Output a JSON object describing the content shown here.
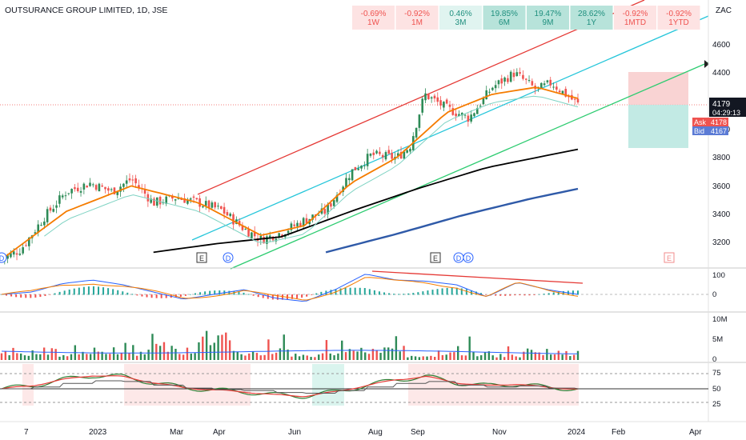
{
  "header": {
    "title": "OUTSURANCE GROUP LIMITED, 1D, JSE",
    "currency": "ZAC"
  },
  "performance": [
    {
      "value": "-0.69%",
      "label": "1W",
      "kind": "neg"
    },
    {
      "value": "-0.92%",
      "label": "1M",
      "kind": "neg"
    },
    {
      "value": "0.46%",
      "label": "3M",
      "kind": "pos"
    },
    {
      "value": "19.85%",
      "label": "6M",
      "kind": "posx"
    },
    {
      "value": "19.47%",
      "label": "9M",
      "kind": "posx"
    },
    {
      "value": "28.62%",
      "label": "1Y",
      "kind": "posx"
    },
    {
      "value": "-0.92%",
      "label": "1MTD",
      "kind": "neg"
    },
    {
      "value": "-0.92%",
      "label": "1YTD",
      "kind": "neg"
    }
  ],
  "price_scale": {
    "ticks": [
      "4600",
      "4400",
      "4200",
      "4000",
      "3800",
      "3600",
      "3400",
      "3200"
    ],
    "last_price": "4179",
    "countdown": "04:29:13",
    "ask_label": "Ask",
    "ask_value": "4178",
    "bid_label": "Bid",
    "bid_value": "4167"
  },
  "macd_scale": [
    "100",
    "0"
  ],
  "volume_scale": [
    "10M",
    "5M",
    "0"
  ],
  "rsi_scale": [
    "75",
    "50",
    "25"
  ],
  "time_axis": [
    "7",
    "2023",
    "Mar",
    "Apr",
    "Jun",
    "Aug",
    "Sep",
    "Nov",
    "2024",
    "Feb",
    "Apr"
  ],
  "event_markers": [
    "D",
    "E",
    "D",
    "E",
    "D",
    "D",
    "E"
  ],
  "colors": {
    "up": "#26a69a",
    "candle_up": "#2e8b57",
    "down": "#ef5350",
    "ema_fast": "#f57c00",
    "ma200": "#000000",
    "ma_long": "#2f5aa8",
    "channel_red": "#e53935",
    "channel_mid": "#26c6da",
    "channel_green": "#2ecc71"
  },
  "chart_data": [
    {
      "type": "candlestick",
      "title": "OUTSURANCE GROUP LIMITED, 1D, JSE",
      "ylabel": "ZAC",
      "ylim": [
        3050,
        4800
      ],
      "x_ticks": [
        "7",
        "2023",
        "Mar",
        "Apr",
        "Jun",
        "Aug",
        "Sep",
        "Nov",
        "2024",
        "Feb",
        "Apr"
      ],
      "series": [
        {
          "name": "close",
          "dates": [
            "2022-12-07",
            "2022-12-20",
            "2023-01-05",
            "2023-01-20",
            "2023-02-05",
            "2023-02-20",
            "2023-03-05",
            "2023-03-20",
            "2023-04-05",
            "2023-04-20",
            "2023-05-05",
            "2023-05-20",
            "2023-06-01",
            "2023-06-15",
            "2023-07-01",
            "2023-07-15",
            "2023-08-01",
            "2023-08-15",
            "2023-09-01",
            "2023-09-10",
            "2023-09-20",
            "2023-10-05",
            "2023-10-20",
            "2023-11-05",
            "2023-11-20",
            "2023-12-05",
            "2023-12-15",
            "2024-01-02"
          ],
          "values": [
            3080,
            3150,
            3380,
            3560,
            3620,
            3560,
            3650,
            3480,
            3520,
            3480,
            3430,
            3300,
            3220,
            3270,
            3360,
            3420,
            3700,
            3820,
            3800,
            3880,
            4250,
            4150,
            4080,
            4300,
            4400,
            4280,
            4330,
            4179
          ]
        },
        {
          "name": "EMA",
          "dates": [
            "2022-12-07",
            "2023-01-20",
            "2023-03-05",
            "2023-04-20",
            "2023-06-01",
            "2023-07-01",
            "2023-08-01",
            "2023-09-01",
            "2023-10-05",
            "2023-11-05",
            "2023-12-05",
            "2024-01-02"
          ],
          "values": [
            3080,
            3420,
            3600,
            3480,
            3250,
            3320,
            3620,
            3800,
            4120,
            4250,
            4300,
            4220
          ]
        },
        {
          "name": "MA200",
          "dates": [
            "2023-03-20",
            "2023-05-01",
            "2023-06-15",
            "2023-08-01",
            "2023-09-15",
            "2023-11-01",
            "2024-01-02"
          ],
          "values": [
            3130,
            3190,
            3240,
            3420,
            3580,
            3730,
            3860
          ]
        },
        {
          "name": "MA long",
          "dates": [
            "2023-07-15",
            "2023-09-01",
            "2023-10-15",
            "2023-12-01",
            "2024-01-02"
          ],
          "values": [
            3130,
            3260,
            3390,
            3510,
            3580
          ]
        }
      ]
    },
    {
      "type": "line",
      "title": "",
      "ylim": [
        -40,
        120
      ],
      "series": [
        {
          "name": "",
          "values": [
            0,
            10,
            45,
            60,
            40,
            10,
            -20,
            0,
            20,
            -15,
            -30,
            20,
            85,
            60,
            55,
            40,
            -10,
            50,
            20,
            0
          ]
        }
      ]
    },
    {
      "type": "bar",
      "title": "",
      "ylabel": "",
      "ylim": [
        0,
        10
      ],
      "values": [
        3,
        4,
        2,
        5,
        3,
        6,
        4,
        10,
        3,
        4,
        2,
        3,
        4,
        5,
        2,
        3,
        3,
        2,
        4,
        3
      ]
    },
    {
      "type": "line",
      "title": "",
      "ylim": [
        20,
        80
      ],
      "series": [
        {
          "name": "",
          "values": [
            50,
            55,
            65,
            72,
            70,
            60,
            52,
            48,
            45,
            40,
            38,
            45,
            55,
            65,
            70,
            60,
            55,
            58,
            52,
            50
          ]
        }
      ]
    }
  ]
}
